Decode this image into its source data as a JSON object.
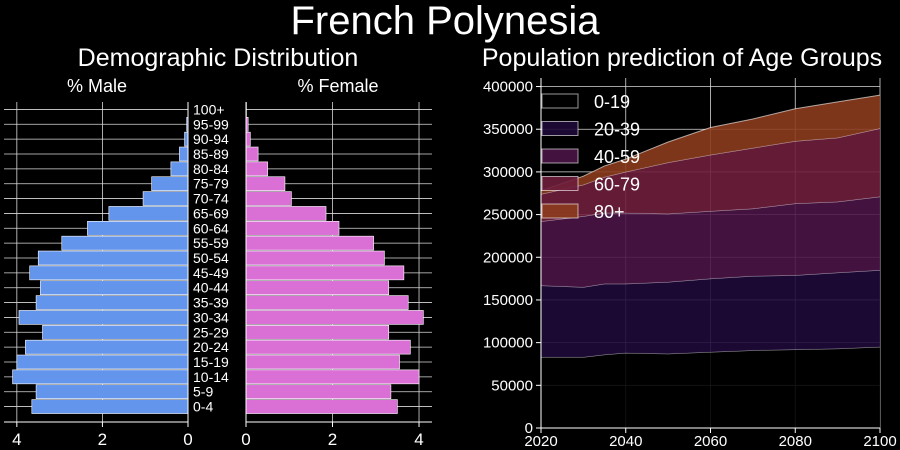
{
  "figure": {
    "title": "French Polynesia",
    "left_title": "Demographic Distribution",
    "right_title": "Population prediction of Age Groups"
  },
  "chart_data": [
    {
      "type": "bar",
      "orientation": "horizontal",
      "panel": "male",
      "title": "% Male",
      "categories": [
        "0-4",
        "5-9",
        "10-14",
        "15-19",
        "20-24",
        "25-29",
        "30-34",
        "35-39",
        "40-44",
        "45-49",
        "50-54",
        "55-59",
        "60-64",
        "65-69",
        "70-74",
        "75-79",
        "80-84",
        "85-89",
        "90-94",
        "95-99",
        "100+"
      ],
      "values": [
        3.65,
        3.55,
        4.1,
        4.0,
        3.8,
        3.4,
        3.95,
        3.55,
        3.45,
        3.7,
        3.5,
        2.95,
        2.35,
        1.85,
        1.05,
        0.85,
        0.4,
        0.2,
        0.08,
        0.03,
        0.0
      ],
      "xlim": [
        4.3,
        0
      ],
      "xticks": [
        4,
        2,
        0
      ],
      "color": "#6495ed",
      "grid": true
    },
    {
      "type": "bar",
      "orientation": "horizontal",
      "panel": "female",
      "title": "% Female",
      "categories": [
        "0-4",
        "5-9",
        "10-14",
        "15-19",
        "20-24",
        "25-29",
        "30-34",
        "35-39",
        "40-44",
        "45-49",
        "50-54",
        "55-59",
        "60-64",
        "65-69",
        "70-74",
        "75-79",
        "80-84",
        "85-89",
        "90-94",
        "95-99",
        "100+"
      ],
      "values": [
        3.5,
        3.35,
        4.0,
        3.55,
        3.8,
        3.3,
        4.1,
        3.75,
        3.3,
        3.65,
        3.2,
        2.95,
        2.15,
        1.85,
        1.05,
        0.9,
        0.5,
        0.28,
        0.1,
        0.05,
        0.01
      ],
      "xlim": [
        0,
        4.3
      ],
      "xticks": [
        0,
        2,
        4
      ],
      "color": "#da70d6",
      "grid": true
    },
    {
      "type": "area",
      "stacked": true,
      "title": "Population prediction of Age Groups",
      "x": [
        2020,
        2030,
        2035,
        2040,
        2050,
        2060,
        2070,
        2080,
        2090,
        2100
      ],
      "xlim": [
        2020,
        2100
      ],
      "ylim": [
        0,
        410000
      ],
      "xticks": [
        2020,
        2040,
        2060,
        2080,
        2100
      ],
      "yticks": [
        0,
        50000,
        100000,
        150000,
        200000,
        250000,
        300000,
        350000,
        400000
      ],
      "legend": "top-left",
      "grid": true,
      "series": [
        {
          "name": "0-19",
          "color": "#000000",
          "values": [
            83000,
            83000,
            86000,
            88000,
            87000,
            89000,
            91000,
            92000,
            93000,
            95000
          ]
        },
        {
          "name": "20-39",
          "color": "#1e0a3a",
          "values": [
            84000,
            82000,
            83000,
            81000,
            84000,
            86000,
            87000,
            87000,
            89000,
            90000
          ]
        },
        {
          "name": "40-59",
          "color": "#4b1446",
          "values": [
            75000,
            83000,
            83000,
            83000,
            80000,
            79000,
            79000,
            84000,
            83000,
            86000
          ]
        },
        {
          "name": "60-79",
          "color": "#6e1e3c",
          "values": [
            32000,
            37000,
            42000,
            48000,
            60000,
            66000,
            71000,
            73000,
            75000,
            80000
          ]
        },
        {
          "name": "80+",
          "color": "#8c3c1e",
          "values": [
            4000,
            10000,
            13000,
            15000,
            24000,
            32000,
            34000,
            38000,
            42000,
            39000
          ]
        }
      ]
    }
  ]
}
